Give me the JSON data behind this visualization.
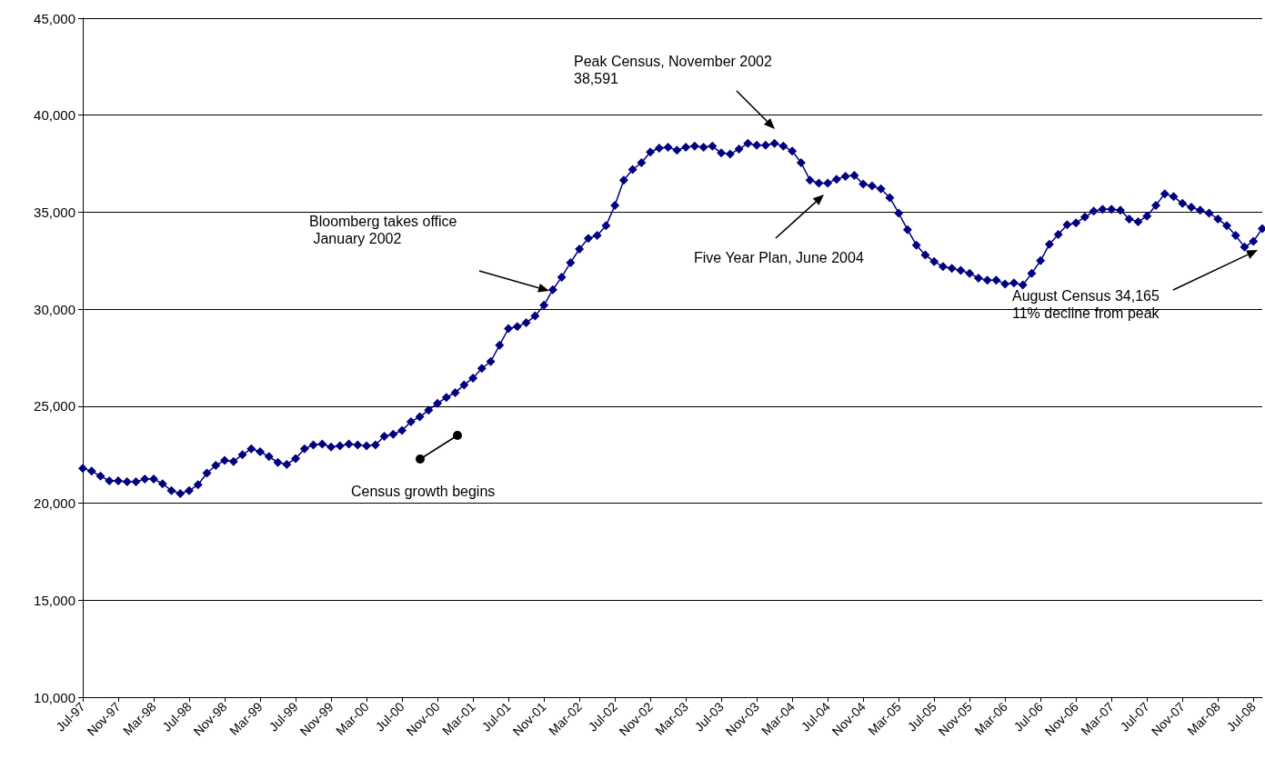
{
  "chart_data": {
    "type": "line",
    "categories": [
      "Jul-97",
      null,
      null,
      null,
      "Nov-97",
      null,
      null,
      null,
      "Mar-98",
      null,
      null,
      null,
      "Jul-98",
      null,
      null,
      null,
      "Nov-98",
      null,
      null,
      null,
      "Mar-99",
      null,
      null,
      null,
      "Jul-99",
      null,
      null,
      null,
      "Nov-99",
      null,
      null,
      null,
      "Mar-00",
      null,
      null,
      null,
      "Jul-00",
      null,
      null,
      null,
      "Nov-00",
      null,
      null,
      null,
      "Mar-01",
      null,
      null,
      null,
      "Jul-01",
      null,
      null,
      null,
      "Nov-01",
      null,
      null,
      null,
      "Mar-02",
      null,
      null,
      null,
      "Jul-02",
      null,
      null,
      null,
      "Nov-02",
      null,
      null,
      null,
      "Mar-03",
      null,
      null,
      null,
      "Jul-03",
      null,
      null,
      null,
      "Nov-03",
      null,
      null,
      null,
      "Mar-04",
      null,
      null,
      null,
      "Jul-04",
      null,
      null,
      null,
      "Nov-04",
      null,
      null,
      null,
      "Mar-05",
      null,
      null,
      null,
      "Jul-05",
      null,
      null,
      null,
      "Nov-05",
      null,
      null,
      null,
      "Mar-06",
      null,
      null,
      null,
      "Jul-06",
      null,
      null,
      null,
      "Nov-06",
      null,
      null,
      null,
      "Mar-07",
      null,
      null,
      null,
      "Jul-07",
      null,
      null,
      null,
      "Nov-07",
      null,
      null,
      null,
      "Mar-08",
      null,
      null,
      null,
      "Jul-08",
      null
    ],
    "series": [
      {
        "color": "#000080",
        "values": [
          21800,
          21650,
          21400,
          21150,
          21150,
          21100,
          21100,
          21250,
          21250,
          21000,
          20650,
          20500,
          20650,
          20950,
          21550,
          21950,
          22200,
          22150,
          22500,
          22800,
          22650,
          22400,
          22100,
          22000,
          22300,
          22800,
          23000,
          23050,
          22900,
          22950,
          23050,
          23000,
          22950,
          23000,
          23450,
          23550,
          23750,
          24200,
          24450,
          24800,
          25150,
          25450,
          25700,
          26100,
          26450,
          26950,
          27300,
          28150,
          29000,
          29100,
          29300,
          29650,
          30200,
          31000,
          31650,
          32400,
          33100,
          33650,
          33800,
          34300,
          35350,
          36650,
          37200,
          37550,
          38100,
          38300,
          38350,
          38200,
          38350,
          38400,
          38350,
          38400,
          38050,
          38000,
          38250,
          38550,
          38450,
          38450,
          38550,
          38400,
          38150,
          37550,
          36650,
          36500,
          36500,
          36700,
          36850,
          36900,
          36450,
          36350,
          36200,
          35750,
          34950,
          34100,
          33300,
          32800,
          32450,
          32200,
          32100,
          32000,
          31850,
          31600,
          31500,
          31500,
          31300,
          31350,
          31250,
          31850,
          32500,
          33350,
          33850,
          34350,
          34450,
          34750,
          35050,
          35150,
          35150,
          35100,
          34650,
          34500,
          34800,
          35350,
          35950,
          35800,
          35450,
          35250,
          35100,
          34950,
          34650,
          34300,
          33800,
          33200,
          33500,
          34150
        ]
      }
    ],
    "ylim": [
      10000,
      45000
    ],
    "yticks": [
      {
        "value": 10000,
        "label": "10,000"
      },
      {
        "value": 15000,
        "label": "15,000"
      },
      {
        "value": 20000,
        "label": "20,000"
      },
      {
        "value": 25000,
        "label": "25,000"
      },
      {
        "value": 30000,
        "label": "30,000"
      },
      {
        "value": 35000,
        "label": "35,000"
      },
      {
        "value": 40000,
        "label": "40,000"
      },
      {
        "value": 45000,
        "label": "45,000"
      }
    ],
    "grid": "y",
    "marker": "diamond",
    "line_style": "solid",
    "annotations": [
      "Peak Census, November 2002\n38,591",
      "Bloomberg takes office\n January 2002",
      "Five Year Plan, June 2004",
      "August Census 34,165\n11% decline from peak",
      "Census growth begins"
    ]
  }
}
